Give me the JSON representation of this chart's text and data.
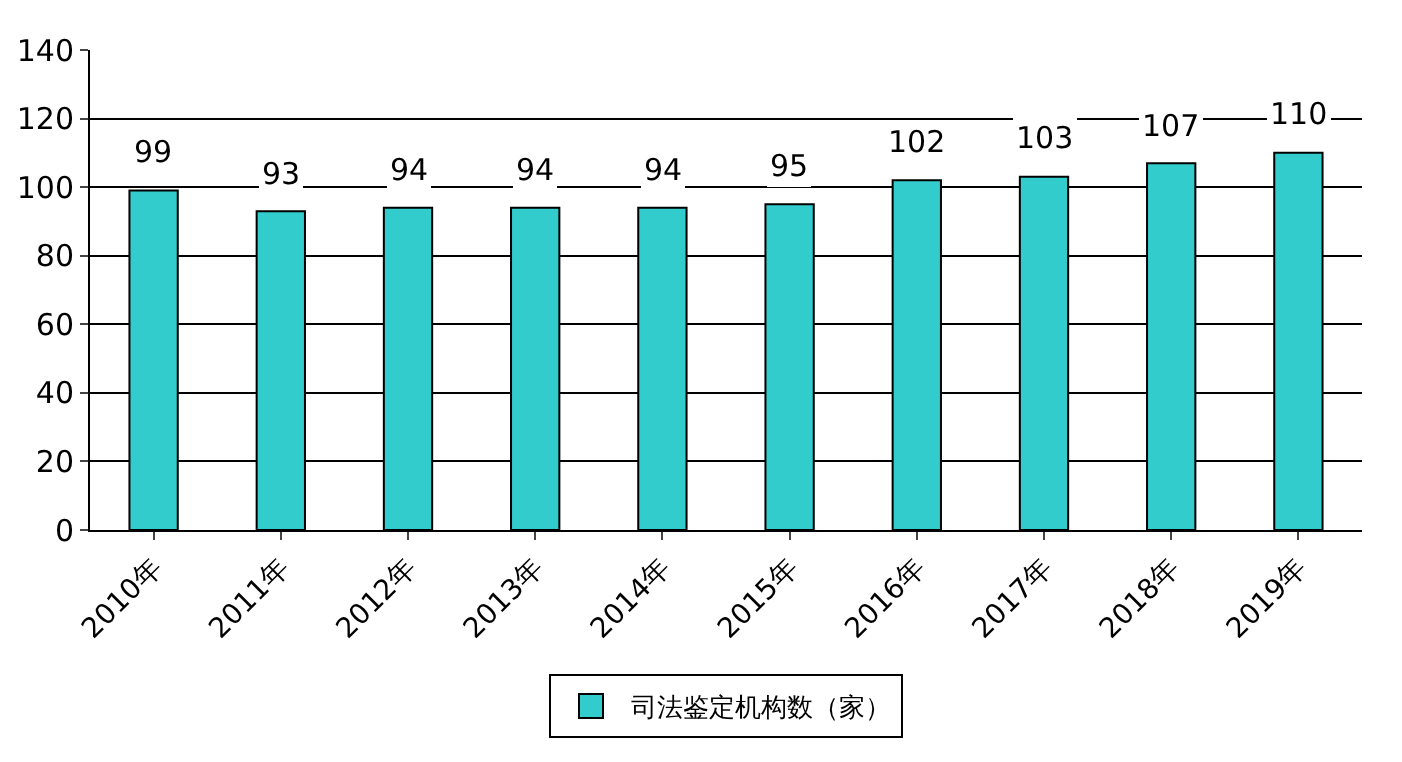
{
  "chart_data": {
    "type": "bar",
    "categories": [
      "2010年",
      "2011年",
      "2012年",
      "2013年",
      "2014年",
      "2015年",
      "2016年",
      "2017年",
      "2018年",
      "2019年"
    ],
    "series": [
      {
        "name": "司法鉴定机构数（家）",
        "color": "#33cccc",
        "values": [
          99,
          93,
          94,
          94,
          94,
          95,
          102,
          103,
          107,
          110
        ]
      }
    ],
    "ylim": [
      0,
      140
    ],
    "yticks": [
      0,
      20,
      40,
      60,
      80,
      100,
      120,
      140
    ],
    "grid": "y",
    "legend": "bottom",
    "data_labels": true
  }
}
